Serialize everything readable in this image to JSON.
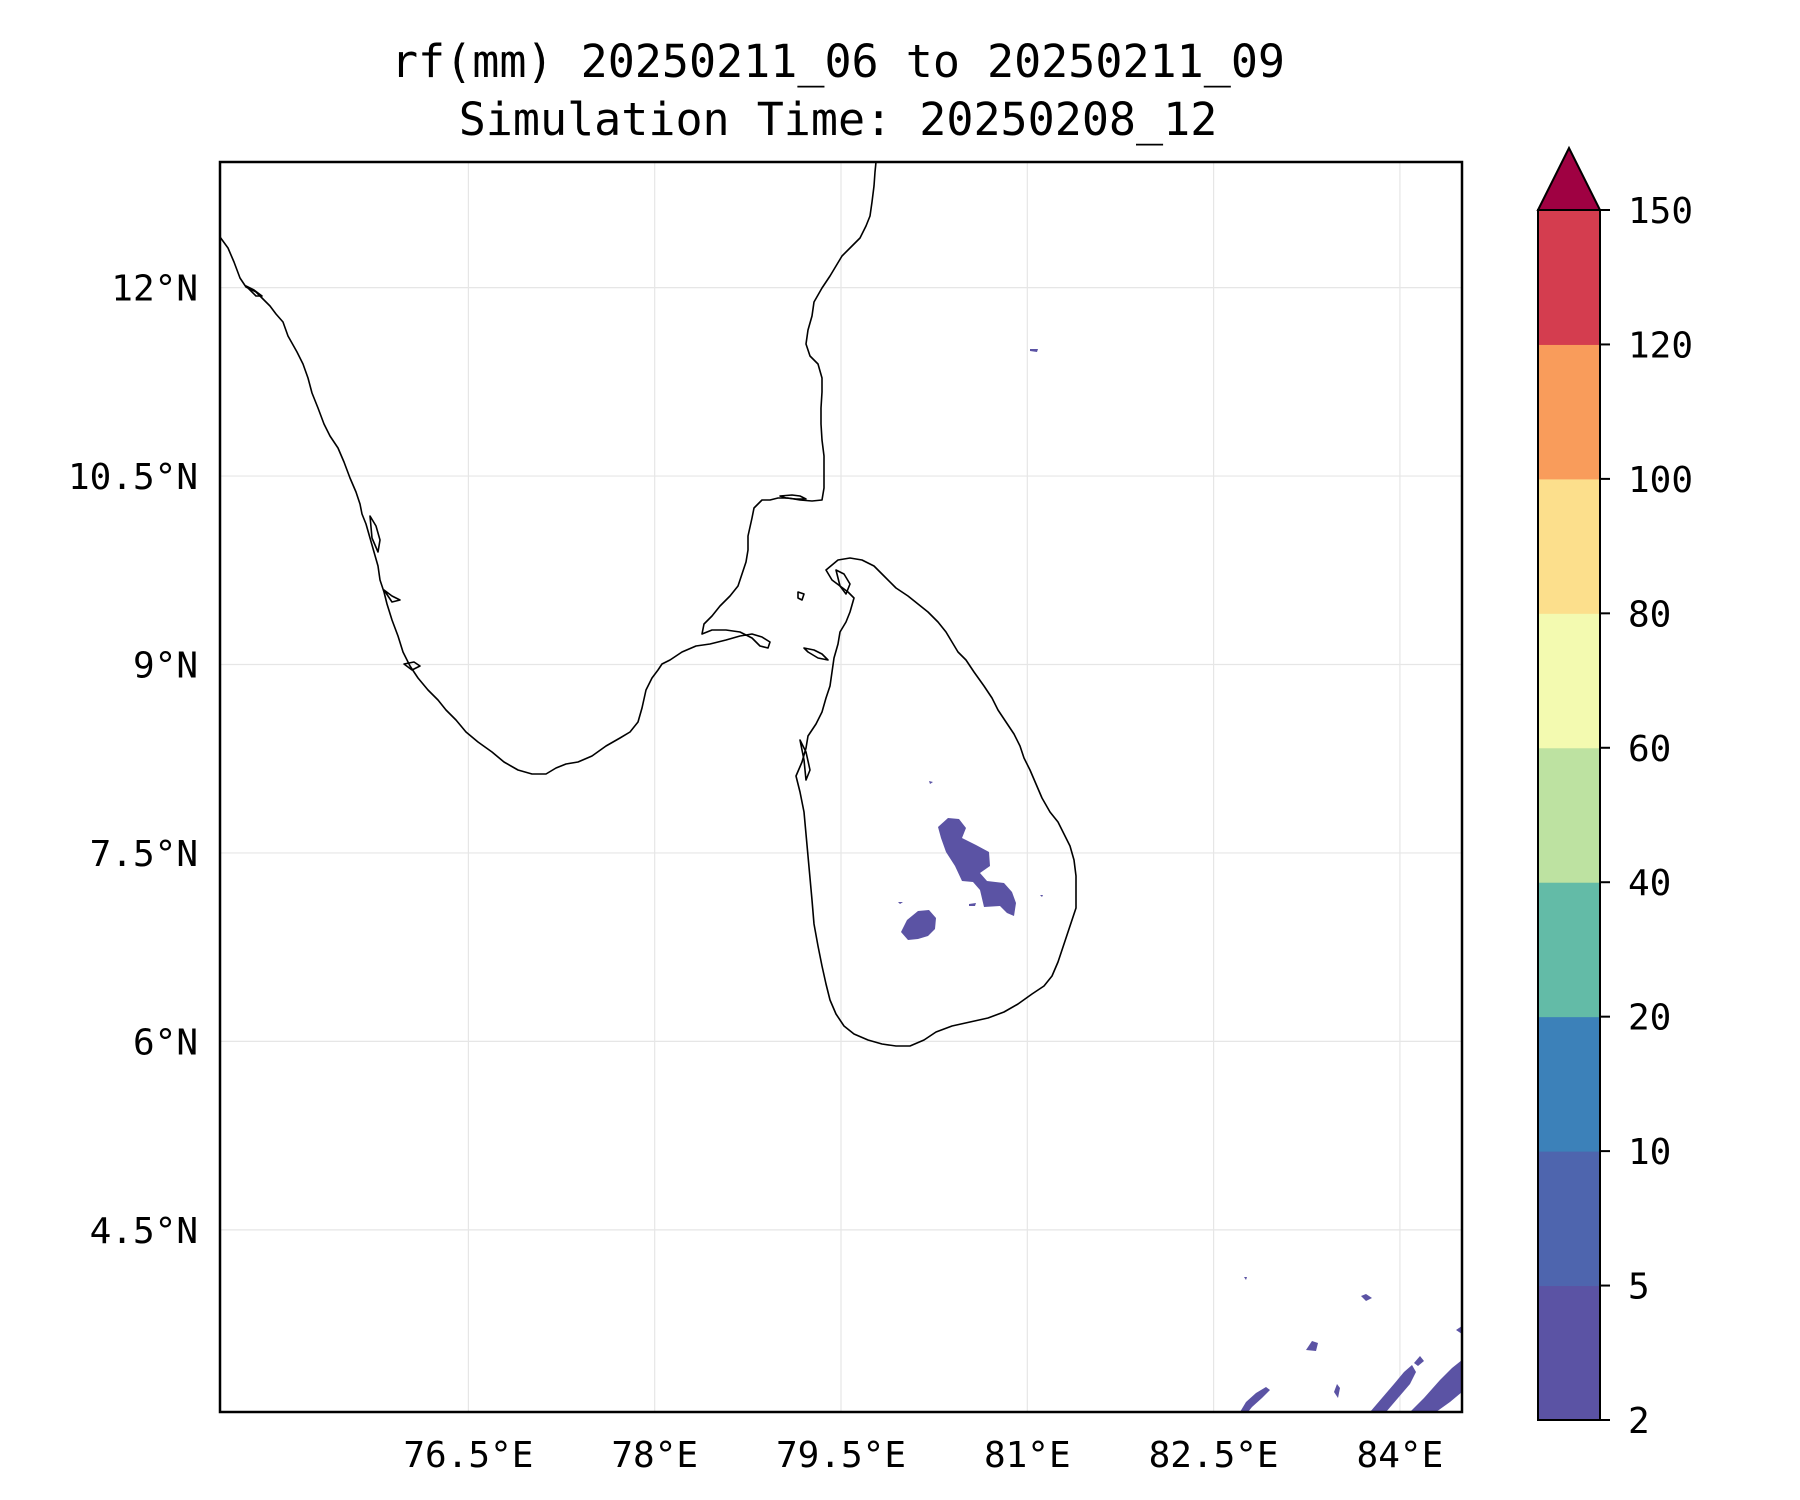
{
  "title": "rf(mm) 20250211_06 to 20250211_09",
  "subtitle": "Simulation Time: 20250208_12",
  "map": {
    "extent": {
      "lon": [
        74.5,
        84.5
      ],
      "lat": [
        3.05,
        13.0
      ]
    },
    "x_ticks": [
      {
        "value": 76.5,
        "label": "76.5°E"
      },
      {
        "value": 78.0,
        "label": "78°E"
      },
      {
        "value": 79.5,
        "label": "79.5°E"
      },
      {
        "value": 81.0,
        "label": "81°E"
      },
      {
        "value": 82.5,
        "label": "82.5°E"
      },
      {
        "value": 84.0,
        "label": "84°E"
      }
    ],
    "y_ticks": [
      {
        "value": 12.0,
        "label": "12°N"
      },
      {
        "value": 10.5,
        "label": "10.5°N"
      },
      {
        "value": 9.0,
        "label": "9°N"
      },
      {
        "value": 7.5,
        "label": "7.5°N"
      },
      {
        "value": 6.0,
        "label": "6°N"
      },
      {
        "value": 4.5,
        "label": "4.5°N"
      }
    ],
    "grid": true
  },
  "colorbar": {
    "levels": [
      2,
      5,
      10,
      20,
      40,
      60,
      80,
      100,
      120,
      150
    ],
    "tick_labels": [
      "2",
      "5",
      "10",
      "20",
      "40",
      "60",
      "80",
      "100",
      "120",
      "150"
    ],
    "colors": [
      "#5b53a4",
      "#4e65ae",
      "#3c81b9",
      "#63bba7",
      "#bde2a1",
      "#f3fab0",
      "#fcdf8c",
      "#f99c5b",
      "#d43d4f"
    ],
    "extend_color": "#9f0142",
    "extend": "max"
  },
  "rainfall_areas": [
    {
      "category": "2-5 mm",
      "color": "#5b53a4",
      "region": "central Sri Lanka highlands (north-east)"
    },
    {
      "category": "2-5 mm",
      "color": "#5b53a4",
      "region": "central Sri Lanka (south-west)"
    },
    {
      "category": "2-5 mm",
      "color": "#5b53a4",
      "region": "south-east Bay of Bengal near 3.5°N 84°E"
    }
  ]
}
